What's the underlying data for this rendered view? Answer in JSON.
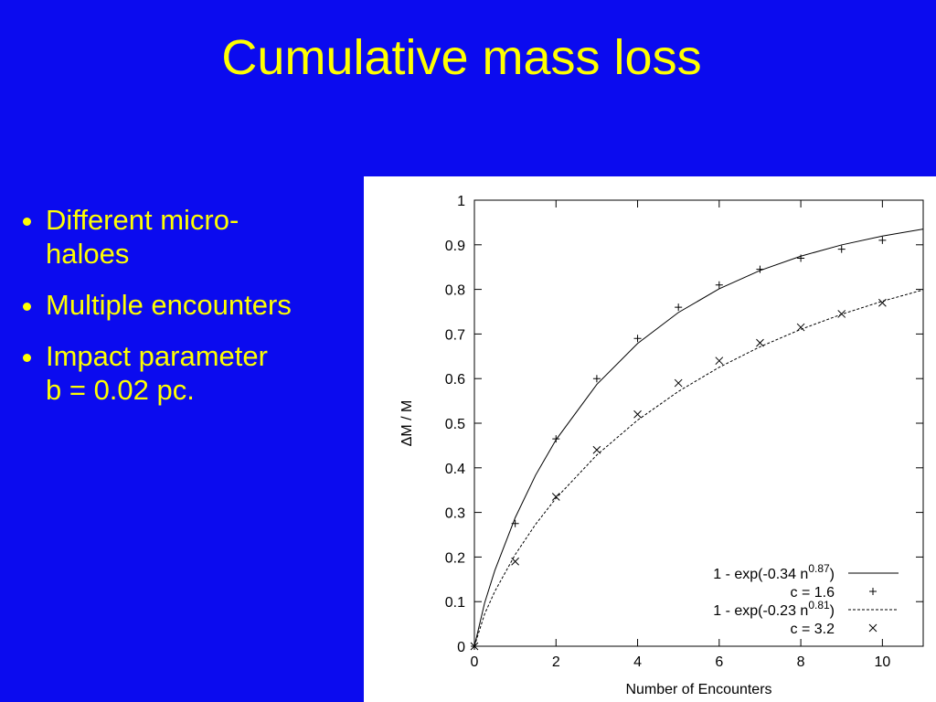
{
  "title": "Cumulative mass loss",
  "bullets": [
    [
      "Different micro-",
      "haloes"
    ],
    [
      "Multiple encounters"
    ],
    [
      "Impact parameter",
      "b = 0.02 pc."
    ]
  ],
  "chart_data": {
    "type": "line",
    "xlabel": "Number of Encounters",
    "ylabel": "ΔM / M",
    "xlim": [
      0,
      11
    ],
    "ylim": [
      0,
      1
    ],
    "xticks": [
      0,
      2,
      4,
      6,
      8,
      10
    ],
    "yticks": [
      0,
      0.1,
      0.2,
      0.3,
      0.4,
      0.5,
      0.6,
      0.7,
      0.8,
      0.9,
      1
    ],
    "legend": "lower right",
    "series": [
      {
        "name": [
          "1 - exp(-0.34 n",
          "0.87",
          ")"
        ],
        "color": "#000000",
        "style": "solid",
        "x": [
          0,
          0.25,
          0.5,
          1,
          1.5,
          2,
          3,
          4,
          5,
          6,
          7,
          8,
          9,
          10,
          11
        ],
        "values": [
          0,
          0.0968,
          0.1697,
          0.2882,
          0.3836,
          0.4628,
          0.587,
          0.6788,
          0.7482,
          0.8013,
          0.8424,
          0.8745,
          0.8997,
          0.9196,
          0.9353
        ]
      },
      {
        "name": [
          "c = 1.6"
        ],
        "color": "#000000",
        "style": "plus",
        "x": [
          0,
          1,
          2,
          3,
          4,
          5,
          6,
          7,
          8,
          9,
          10
        ],
        "values": [
          0,
          0.275,
          0.465,
          0.6,
          0.69,
          0.76,
          0.81,
          0.845,
          0.87,
          0.89,
          0.91
        ]
      },
      {
        "name": [
          "1 - exp(-0.23 n",
          "0.81",
          ")"
        ],
        "color": "#000000",
        "style": "dashed",
        "x": [
          0,
          0.25,
          0.5,
          1,
          1.5,
          2,
          3,
          4,
          5,
          6,
          7,
          8,
          9,
          10,
          11
        ],
        "values": [
          0,
          0.0721,
          0.1229,
          0.2055,
          0.2734,
          0.3318,
          0.4288,
          0.5069,
          0.5713,
          0.6254,
          0.6713,
          0.7104,
          0.7442,
          0.7735,
          0.799
        ]
      },
      {
        "name": [
          "c = 3.2"
        ],
        "color": "#000000",
        "style": "cross",
        "x": [
          0,
          1,
          2,
          3,
          4,
          5,
          6,
          7,
          8,
          9,
          10
        ],
        "values": [
          0,
          0.19,
          0.335,
          0.44,
          0.52,
          0.59,
          0.64,
          0.68,
          0.715,
          0.745,
          0.77
        ]
      }
    ]
  }
}
